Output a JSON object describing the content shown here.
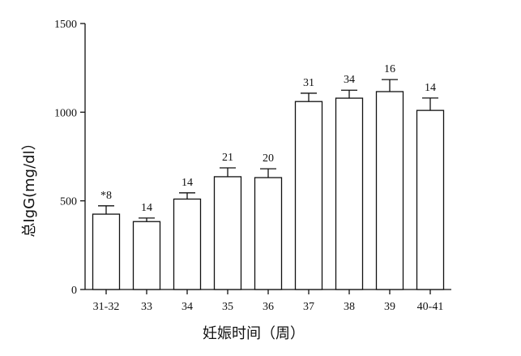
{
  "chart_data": {
    "type": "bar",
    "title": "",
    "xlabel": "妊娠时间（周）",
    "ylabel": "总IgG(mg/dl）",
    "ylim": [
      0,
      1500
    ],
    "yticks": [
      0,
      500,
      1000,
      1500
    ],
    "categories": [
      "31-32",
      "33",
      "34",
      "35",
      "36",
      "37",
      "38",
      "39",
      "40-41"
    ],
    "values": [
      425,
      383,
      510,
      636,
      631,
      1060,
      1079,
      1116,
      1010
    ],
    "error": [
      47,
      20,
      35,
      50,
      50,
      47,
      45,
      68,
      70
    ],
    "bar_labels": [
      "*8",
      "14",
      "14",
      "21",
      "20",
      "31",
      "34",
      "16",
      "14"
    ],
    "grid": false,
    "legend": "none",
    "colors": {
      "bar_fill": "#ffffff",
      "bar_stroke": "#111111",
      "axis": "#111111"
    }
  }
}
